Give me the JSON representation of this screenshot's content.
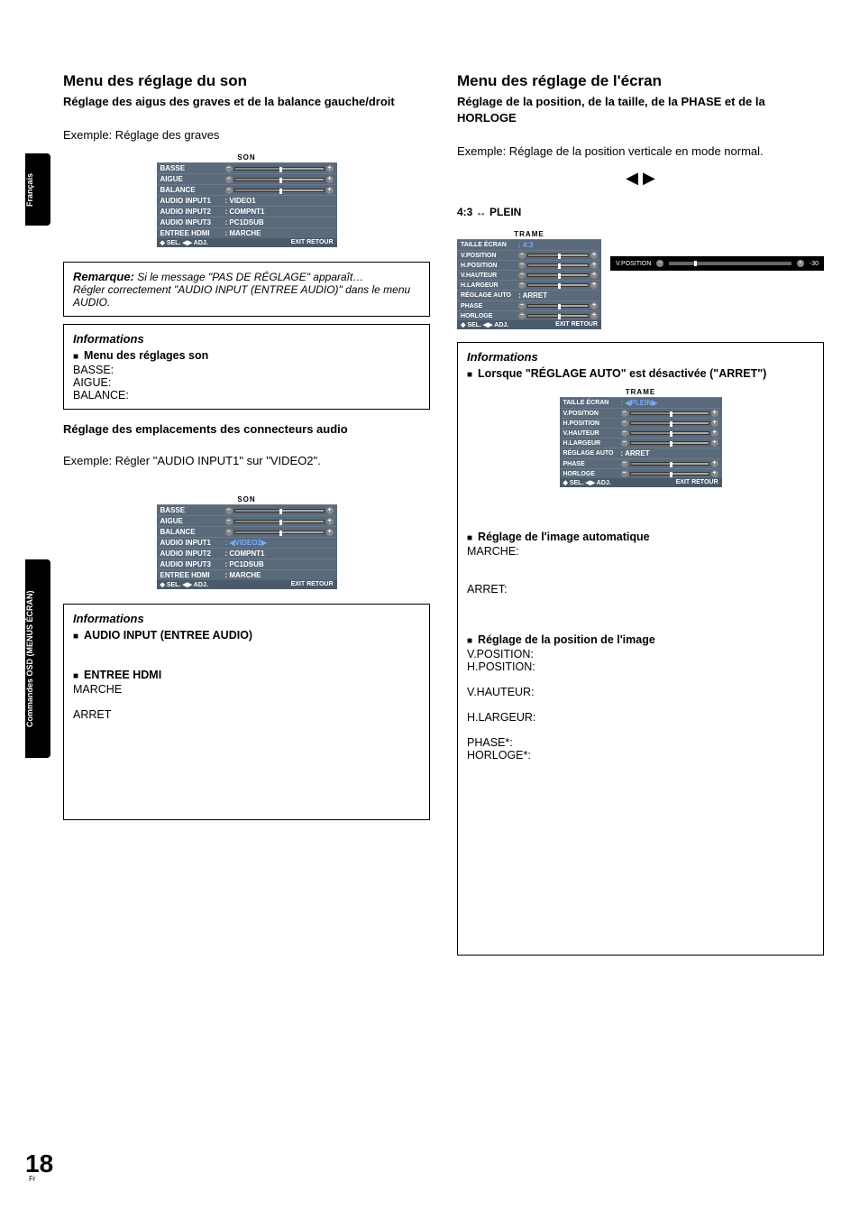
{
  "sideTab1": "Français",
  "sideTab2": "Commandes OSD (MENUS ÉCRAN)",
  "pageNumber": "18",
  "pageNumberSub": "Fr",
  "left": {
    "heading": "Menu des réglage du son",
    "subtitle": "Réglage des aigus des graves et de la balance gauche/droit",
    "example1": "Exemple: Réglage des graves",
    "osd1": {
      "title": "SON",
      "rows": [
        {
          "label": "BASSE",
          "type": "slider"
        },
        {
          "label": "AIGUE",
          "type": "slider"
        },
        {
          "label": "BALANCE",
          "type": "balance"
        },
        {
          "label": "AUDIO INPUT1",
          "value": ": VIDEO1"
        },
        {
          "label": "AUDIO INPUT2",
          "value": ": COMPNT1"
        },
        {
          "label": "AUDIO INPUT3",
          "value": ": PC1DSUB"
        },
        {
          "label": "ENTREE HDMI",
          "value": ": MARCHE"
        }
      ],
      "footLeft": "◆ SEL.   ◀▶ ADJ.",
      "footRight": "EXIT RETOUR"
    },
    "remarque": {
      "title": "Remarque:",
      "line1": " Si le message \"PAS DE RÉGLAGE\" apparaît…",
      "line2": "Régler correctement \"AUDIO INPUT (ENTREE AUDIO)\" dans le menu AUDIO."
    },
    "info1": {
      "title": "Informations",
      "bullet": "Menu des réglages son",
      "items": [
        "BASSE:",
        "AIGUE:",
        "BALANCE:"
      ]
    },
    "h3a": "Réglage des emplacements des connecteurs audio",
    "example2": "Exemple: Régler \"AUDIO INPUT1\" sur \"VIDEO2\".",
    "osd2": {
      "title": "SON",
      "rows": [
        {
          "label": "BASSE",
          "type": "slider"
        },
        {
          "label": "AIGUE",
          "type": "slider"
        },
        {
          "label": "BALANCE",
          "type": "balance"
        },
        {
          "label": "AUDIO INPUT1",
          "value": ": ◀VIDEO2▶",
          "hl": true
        },
        {
          "label": "AUDIO INPUT2",
          "value": ": COMPNT1"
        },
        {
          "label": "AUDIO INPUT3",
          "value": ": PC1DSUB"
        },
        {
          "label": "ENTREE HDMI",
          "value": ": MARCHE"
        }
      ],
      "footLeft": "◆ SEL.   ◀▶ ADJ.",
      "footRight": "EXIT RETOUR"
    },
    "info2": {
      "title": "Informations",
      "b1": "AUDIO INPUT (ENTREE AUDIO)",
      "b2": "ENTREE HDMI",
      "i1": "MARCHE",
      "i2": "ARRET"
    }
  },
  "right": {
    "heading": "Menu des réglage de l'écran",
    "subtitle": "Réglage de la position, de la taille, de la PHASE et de la HORLOGE",
    "example1": "Exemple: Réglage de la position verticale en mode normal.",
    "arrows": "◀   ▶",
    "ratio": "4:3 ↔ PLEIN",
    "osd3": {
      "title": "TRAME",
      "rows": [
        {
          "label": "TAILLE ÉCRAN",
          "value": ": 4:3",
          "hl": true
        },
        {
          "label": "V.POSITION",
          "type": "slider"
        },
        {
          "label": "H.POSITION",
          "type": "slider"
        },
        {
          "label": "V.HAUTEUR",
          "type": "slider"
        },
        {
          "label": "H.LARGEUR",
          "type": "slider"
        },
        {
          "label": "RÉGLAGE AUTO",
          "value": ": ARRET"
        },
        {
          "label": "PHASE",
          "type": "slider"
        },
        {
          "label": "HORLOGE",
          "type": "slider"
        }
      ],
      "footLeft": "◆ SEL.   ◀▶ ADJ.",
      "footRight": "EXIT RETOUR"
    },
    "detail": {
      "label": "V.POSITION",
      "value": "-30"
    },
    "info3": {
      "title": "Informations",
      "b1": "Lorsque \"RÉGLAGE AUTO\" est désactivée (\"ARRET\")",
      "osd4": {
        "title": "TRAME",
        "rows": [
          {
            "label": "TAILLE ÉCRAN",
            "value": ": ◀PLEIN▶",
            "hl": true
          },
          {
            "label": "V.POSITION",
            "type": "slider"
          },
          {
            "label": "H.POSITION",
            "type": "slider"
          },
          {
            "label": "V.HAUTEUR",
            "type": "slider"
          },
          {
            "label": "H.LARGEUR",
            "type": "slider"
          },
          {
            "label": "RÉGLAGE AUTO",
            "value": ": ARRET"
          },
          {
            "label": "PHASE",
            "type": "slider"
          },
          {
            "label": "HORLOGE",
            "type": "slider"
          }
        ],
        "footLeft": "◆ SEL.   ◀▶ ADJ.",
        "footRight": "EXIT RETOUR"
      },
      "b2": "Réglage de l'image automatique",
      "i2a": "MARCHE:",
      "i2b": "ARRET:",
      "b3": "Réglage de la position de l'image",
      "i3": [
        "V.POSITION:",
        "H.POSITION:",
        "",
        "V.HAUTEUR:",
        "",
        "H.LARGEUR:",
        "",
        "PHASE*:",
        "HORLOGE*:"
      ]
    }
  }
}
